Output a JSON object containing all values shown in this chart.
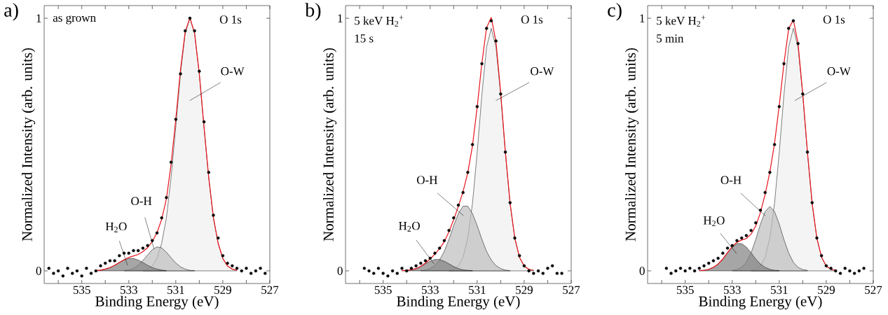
{
  "chart_data": [
    {
      "type": "area",
      "title": "a)",
      "xlabel": "Binding Energy (eV)",
      "ylabel": "Normalized Intensity (arb. units)",
      "xlim": [
        536.6,
        527
      ],
      "ylim": [
        -0.05,
        1.05
      ],
      "xticks": [
        {
          "value": 536,
          "label": null
        },
        535,
        {
          "value": 534,
          "label": null
        },
        533,
        {
          "value": 532,
          "label": null
        },
        531,
        {
          "value": 530,
          "label": null
        },
        529,
        {
          "value": 528,
          "label": null
        },
        527
      ],
      "yticks": [
        0,
        1
      ],
      "annotations": [
        "O 1s",
        "as grown",
        "O-W",
        {
          "text": "O-H",
          "x": 531.93,
          "y": 0.088
        },
        "H$_{2}$O"
      ],
      "series": [
        {
          "type": "area",
          "color": "#f0f0f0",
          "x": [
            532.4,
            532.2,
            532.0,
            531.8,
            531.6,
            531.4,
            531.2,
            531.0,
            530.8,
            530.6,
            530.4,
            530.2,
            530.0,
            529.8,
            529.6,
            529.4,
            529.2,
            529.0,
            528.8,
            528.6,
            528.4
          ],
          "values": [
            0.002,
            0.007,
            0.019,
            0.049,
            0.11,
            0.21,
            0.37,
            0.57,
            0.78,
            0.94,
            1.0,
            0.94,
            0.78,
            0.57,
            0.37,
            0.21,
            0.11,
            0.049,
            0.019,
            0.007,
            0.002
          ]
        },
        {
          "type": "area",
          "color": "#bdbdbd",
          "x": [
            533.2,
            533.0,
            532.8,
            532.6,
            532.4,
            532.2,
            532.0,
            531.8,
            531.6,
            531.4,
            531.2,
            531.0,
            530.8,
            530.6,
            530.4,
            530.2
          ],
          "values": [
            0.001,
            0.004,
            0.01,
            0.022,
            0.041,
            0.063,
            0.084,
            0.095,
            0.091,
            0.074,
            0.052,
            0.031,
            0.016,
            0.007,
            0.002,
            0.001
          ]
        },
        {
          "type": "area",
          "color": "#808080",
          "x": [
            534.4,
            534.2,
            534.0,
            533.8,
            533.6,
            533.4,
            533.2,
            533.0,
            532.8,
            532.6,
            532.4,
            532.2,
            532.0,
            531.8,
            531.6,
            531.4
          ],
          "values": [
            0.001,
            0.003,
            0.007,
            0.013,
            0.022,
            0.033,
            0.043,
            0.049,
            0.049,
            0.043,
            0.033,
            0.022,
            0.013,
            0.007,
            0.003,
            0.001
          ]
        },
        {
          "type": "line",
          "color": "#e8141c",
          "x": [
            534.4,
            534.2,
            534.0,
            533.8,
            533.6,
            533.4,
            533.2,
            533.0,
            532.8,
            532.6,
            532.4,
            532.2,
            532.0,
            531.8,
            531.6,
            531.4,
            531.2,
            531.0,
            530.8,
            530.6,
            530.4,
            530.2,
            530.0,
            529.8,
            529.6,
            529.4,
            529.2,
            529.0,
            528.8,
            528.6,
            528.4
          ],
          "values": [
            0.001,
            0.003,
            0.007,
            0.013,
            0.022,
            0.033,
            0.044,
            0.053,
            0.059,
            0.065,
            0.076,
            0.092,
            0.116,
            0.151,
            0.204,
            0.285,
            0.422,
            0.601,
            0.796,
            0.947,
            1.002,
            0.941,
            0.78,
            0.57,
            0.37,
            0.21,
            0.11,
            0.049,
            0.019,
            0.007,
            0.002
          ]
        },
        {
          "type": "scatter",
          "color": "#000000",
          "x": [
            536.4,
            536.2,
            536.0,
            535.8,
            535.6,
            535.4,
            535.2,
            535.0,
            534.8,
            534.6,
            534.4,
            534.2,
            534.0,
            533.8,
            533.6,
            533.4,
            533.2,
            533.0,
            532.8,
            532.6,
            532.4,
            532.2,
            532.0,
            531.8,
            531.6,
            531.4,
            531.2,
            531.0,
            530.8,
            530.6,
            530.4,
            530.2,
            530.0,
            529.8,
            529.6,
            529.4,
            529.2,
            529.0,
            528.8,
            528.6,
            528.4,
            528.2,
            528.0,
            527.8,
            527.6,
            527.4,
            527.2
          ],
          "values": [
            0.01,
            -0.01,
            0.0,
            -0.02,
            0.01,
            -0.01,
            0.0,
            -0.02,
            0.01,
            -0.01,
            0.0,
            0.02,
            0.03,
            0.04,
            0.04,
            0.06,
            0.07,
            0.07,
            0.08,
            0.08,
            0.09,
            0.1,
            0.12,
            0.15,
            0.21,
            0.29,
            0.43,
            0.6,
            0.78,
            0.95,
            1.0,
            0.95,
            0.79,
            0.59,
            0.39,
            0.22,
            0.13,
            0.06,
            0.03,
            0.02,
            0.01,
            0.0,
            0.01,
            -0.01,
            0.0,
            0.01,
            -0.01
          ]
        }
      ]
    },
    {
      "type": "area",
      "title": "b)",
      "xlabel": "Binding Energy (eV)",
      "ylabel": "Normalized Intensity (arb. units)",
      "xlim": [
        536.6,
        527
      ],
      "ylim": [
        -0.05,
        1.05
      ],
      "xticks": [
        {
          "value": 536,
          "label": null
        },
        535,
        {
          "value": 534,
          "label": null
        },
        533,
        {
          "value": 532,
          "label": null
        },
        531,
        {
          "value": 530,
          "label": null
        },
        529,
        {
          "value": 528,
          "label": null
        },
        527
      ],
      "yticks": [
        0,
        1
      ],
      "annotations": [
        "O 1s",
        "5 keV H$_{2}$$^{+}$",
        "15 s",
        "O-W",
        "O-H",
        {
          "text": "H$_{2}$O",
          "x": 532.84,
          "y": 0.028
        }
      ],
      "series": [
        {
          "type": "area",
          "color": "#f0f0f0",
          "x": [
            532.2,
            532.0,
            531.8,
            531.6,
            531.4,
            531.2,
            531.0,
            530.8,
            530.6,
            530.4,
            530.2,
            530.0,
            529.8,
            529.6,
            529.4,
            529.2,
            529.0,
            528.8,
            528.6
          ],
          "values": [
            0.002,
            0.006,
            0.019,
            0.054,
            0.13,
            0.267,
            0.468,
            0.697,
            0.886,
            0.96,
            0.886,
            0.697,
            0.468,
            0.267,
            0.13,
            0.054,
            0.019,
            0.006,
            0.002
          ]
        },
        {
          "type": "area",
          "color": "#bdbdbd",
          "x": [
            533.4,
            533.2,
            533.0,
            532.8,
            532.6,
            532.4,
            532.2,
            532.0,
            531.8,
            531.6,
            531.4,
            531.2,
            531.0,
            530.8,
            530.6,
            530.4,
            530.2,
            530.0,
            529.8,
            529.6
          ],
          "values": [
            0.001,
            0.003,
            0.009,
            0.021,
            0.043,
            0.077,
            0.125,
            0.179,
            0.227,
            0.256,
            0.256,
            0.227,
            0.179,
            0.125,
            0.077,
            0.043,
            0.021,
            0.009,
            0.003,
            0.001
          ]
        },
        {
          "type": "area",
          "color": "#808080",
          "x": [
            534.2,
            534.0,
            533.8,
            533.6,
            533.4,
            533.2,
            533.0,
            532.8,
            532.6,
            532.4,
            532.2,
            532.0,
            531.8,
            531.6,
            531.4,
            531.2
          ],
          "values": [
            0.001,
            0.002,
            0.004,
            0.009,
            0.017,
            0.028,
            0.038,
            0.045,
            0.045,
            0.038,
            0.028,
            0.017,
            0.009,
            0.004,
            0.002,
            0.001
          ]
        },
        {
          "type": "line",
          "color": "#e8141c",
          "x": [
            534.2,
            534.0,
            533.8,
            533.6,
            533.4,
            533.2,
            533.0,
            532.8,
            532.6,
            532.4,
            532.2,
            532.0,
            531.8,
            531.6,
            531.4,
            531.2,
            531.0,
            530.8,
            530.6,
            530.4,
            530.2,
            530.0,
            529.8,
            529.6,
            529.4,
            529.2,
            529.0,
            528.8,
            528.6
          ],
          "values": [
            0.001,
            0.002,
            0.004,
            0.009,
            0.018,
            0.031,
            0.047,
            0.066,
            0.088,
            0.115,
            0.155,
            0.202,
            0.255,
            0.314,
            0.388,
            0.495,
            0.647,
            0.822,
            0.963,
            1.003,
            0.907,
            0.706,
            0.471,
            0.268,
            0.13,
            0.054,
            0.019,
            0.006,
            0.002
          ]
        },
        {
          "type": "scatter",
          "color": "#000000",
          "x": [
            535.8,
            535.6,
            535.4,
            535.2,
            535.0,
            534.8,
            534.6,
            534.4,
            534.2,
            534.0,
            533.8,
            533.6,
            533.4,
            533.2,
            533.0,
            532.8,
            532.6,
            532.4,
            532.2,
            532.0,
            531.8,
            531.6,
            531.4,
            531.2,
            531.0,
            530.8,
            530.6,
            530.4,
            530.2,
            530.0,
            529.8,
            529.6,
            529.4,
            529.2,
            529.0,
            528.8,
            528.6,
            528.4,
            528.2,
            528.0,
            527.8,
            527.6,
            527.4
          ],
          "values": [
            0.01,
            0.0,
            -0.01,
            0.01,
            -0.01,
            -0.02,
            0.0,
            -0.01,
            0.01,
            0.0,
            0.01,
            0.02,
            0.03,
            0.04,
            0.05,
            0.07,
            0.09,
            0.12,
            0.16,
            0.21,
            0.26,
            0.31,
            0.39,
            0.5,
            0.65,
            0.82,
            0.96,
            0.99,
            0.91,
            0.7,
            0.47,
            0.27,
            0.13,
            0.06,
            0.02,
            0.0,
            -0.01,
            0.0,
            -0.01,
            0.01,
            0.02,
            -0.01,
            -0.01
          ]
        }
      ]
    },
    {
      "type": "area",
      "title": "c)",
      "xlabel": "Binding Energy (eV)",
      "ylabel": "Normalized Intensity (arb. units)",
      "xlim": [
        536.6,
        527
      ],
      "ylim": [
        -0.05,
        1.05
      ],
      "xticks": [
        {
          "value": 536,
          "label": null
        },
        535,
        {
          "value": 534,
          "label": null
        },
        533,
        {
          "value": 532,
          "label": null
        },
        531,
        {
          "value": 530,
          "label": null
        },
        529,
        {
          "value": 528,
          "label": null
        },
        527
      ],
      "yticks": [
        0,
        1
      ],
      "annotations": [
        "O 1s",
        "5 keV H$_{2}$$^{+}$",
        "5 min",
        "O-W",
        {
          "text": "O-H",
          "x": 531.59,
          "y": 0.218
        },
        "H$_{2}$O"
      ],
      "series": [
        {
          "type": "area",
          "color": "#f0f0f0",
          "x": [
            532.2,
            532.0,
            531.8,
            531.6,
            531.4,
            531.2,
            531.0,
            530.8,
            530.6,
            530.4,
            530.2,
            530.0,
            529.8,
            529.6,
            529.4,
            529.2,
            529.0,
            528.8,
            528.6
          ],
          "values": [
            0.002,
            0.006,
            0.019,
            0.054,
            0.13,
            0.267,
            0.468,
            0.697,
            0.886,
            0.96,
            0.886,
            0.697,
            0.468,
            0.267,
            0.13,
            0.054,
            0.019,
            0.006,
            0.002
          ]
        },
        {
          "type": "area",
          "color": "#bdbdbd",
          "x": [
            533.0,
            532.8,
            532.6,
            532.4,
            532.2,
            532.0,
            531.8,
            531.6,
            531.4,
            531.2,
            531.0,
            530.8,
            530.6,
            530.4,
            530.2,
            530.0,
            529.8
          ],
          "values": [
            0.002,
            0.005,
            0.014,
            0.034,
            0.071,
            0.124,
            0.185,
            0.235,
            0.255,
            0.235,
            0.185,
            0.124,
            0.071,
            0.034,
            0.014,
            0.005,
            0.002
          ]
        },
        {
          "type": "area",
          "color": "#808080",
          "x": [
            534.4,
            534.2,
            534.0,
            533.8,
            533.6,
            533.4,
            533.2,
            533.0,
            532.8,
            532.6,
            532.4,
            532.2,
            532.0,
            531.8,
            531.6,
            531.4,
            531.2,
            531.0
          ],
          "values": [
            0.001,
            0.002,
            0.006,
            0.014,
            0.027,
            0.047,
            0.072,
            0.094,
            0.108,
            0.108,
            0.094,
            0.072,
            0.047,
            0.027,
            0.014,
            0.006,
            0.002,
            0.001
          ]
        },
        {
          "type": "line",
          "color": "#e8141c",
          "x": [
            534.4,
            534.2,
            534.0,
            533.8,
            533.6,
            533.4,
            533.2,
            533.0,
            532.8,
            532.6,
            532.4,
            532.2,
            532.0,
            531.8,
            531.6,
            531.4,
            531.2,
            531.0,
            530.8,
            530.6,
            530.4,
            530.2,
            530.0,
            529.8,
            529.6,
            529.4,
            529.2,
            529.0,
            528.8,
            528.6
          ],
          "values": [
            0.001,
            0.002,
            0.006,
            0.014,
            0.027,
            0.047,
            0.072,
            0.096,
            0.113,
            0.122,
            0.128,
            0.145,
            0.177,
            0.231,
            0.303,
            0.391,
            0.504,
            0.654,
            0.821,
            0.957,
            0.994,
            0.9,
            0.702,
            0.47,
            0.267,
            0.13,
            0.054,
            0.019,
            0.006,
            0.002
          ]
        },
        {
          "type": "scatter",
          "color": "#000000",
          "x": [
            535.8,
            535.6,
            535.4,
            535.2,
            535.0,
            534.8,
            534.6,
            534.4,
            534.2,
            534.0,
            533.8,
            533.6,
            533.4,
            533.2,
            533.0,
            532.8,
            532.6,
            532.4,
            532.2,
            532.0,
            531.8,
            531.6,
            531.4,
            531.2,
            531.0,
            530.8,
            530.6,
            530.4,
            530.2,
            530.0,
            529.8,
            529.6,
            529.4,
            529.2,
            529.0,
            528.8,
            528.6,
            528.4,
            528.2,
            528.0,
            527.8,
            527.6,
            527.4
          ],
          "values": [
            0.01,
            -0.01,
            0.0,
            0.01,
            0.0,
            0.01,
            0.0,
            0.01,
            0.02,
            0.03,
            0.04,
            0.05,
            0.07,
            0.09,
            0.1,
            0.12,
            0.13,
            0.14,
            0.16,
            0.19,
            0.24,
            0.31,
            0.39,
            0.5,
            0.65,
            0.82,
            0.96,
            0.99,
            0.9,
            0.7,
            0.47,
            0.27,
            0.13,
            0.06,
            0.02,
            0.01,
            0.0,
            -0.01,
            0.01,
            0.0,
            -0.01,
            0.0,
            0.01
          ]
        }
      ]
    }
  ]
}
